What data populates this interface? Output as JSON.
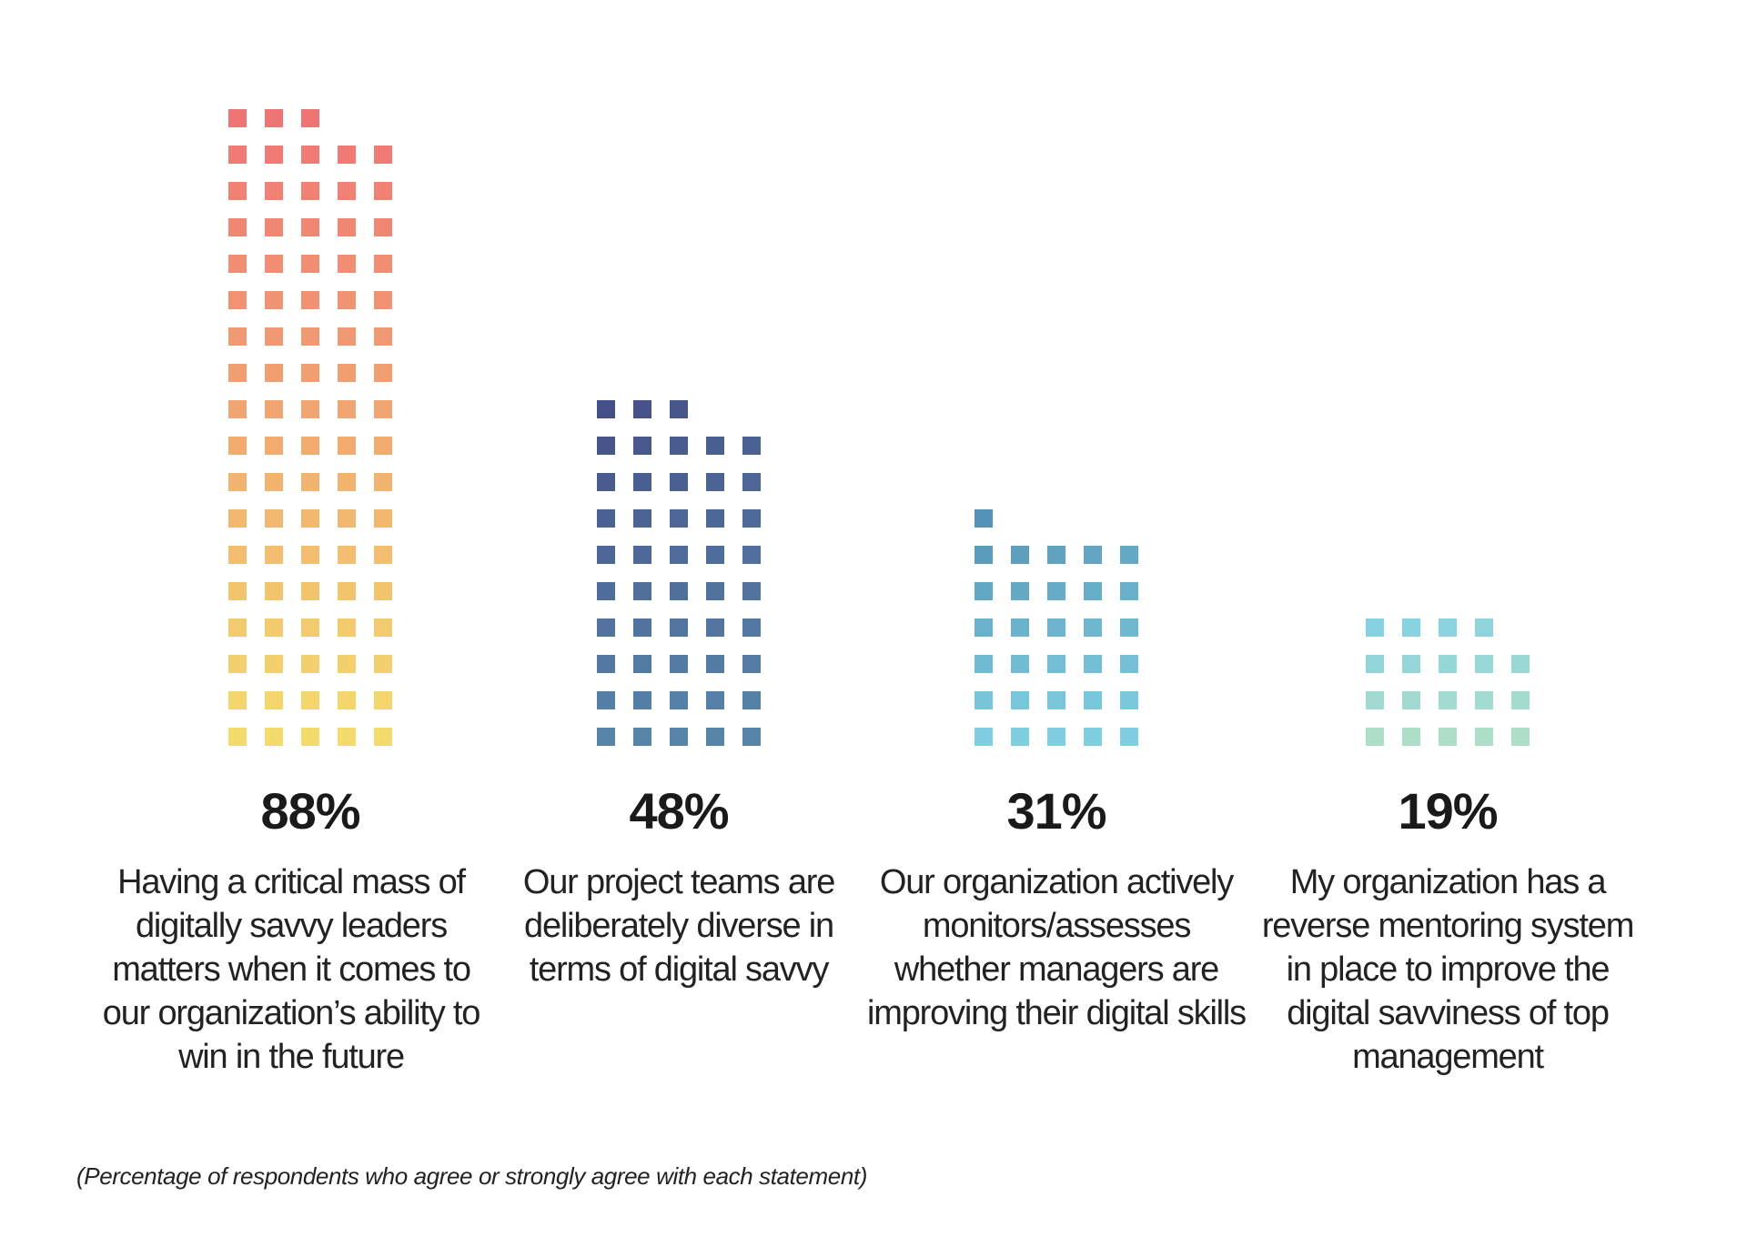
{
  "chart_data": {
    "type": "bar",
    "style": "waffle-column",
    "categories": [
      "Having a critical mass of digitally savvy leaders matters when it comes to our organization’s ability to win in the future",
      "Our project teams are deliberately diverse in terms of digital savvy",
      "Our organization actively monitors/assesses whether managers are improving their digital skills",
      "My organization has a reverse mentoring system in place to improve the digital savviness of top management"
    ],
    "values": [
      88,
      48,
      31,
      19
    ],
    "value_labels": [
      "88%",
      "48%",
      "31%",
      "19%"
    ],
    "unit": "%",
    "note": "(Percentage of respondents who agree or strongly agree with each statement)",
    "colors": {
      "col1": {
        "top": "#ef7575",
        "bottom": "#f4dc6c"
      },
      "col2": {
        "top": "#454f87",
        "bottom": "#5785aa"
      },
      "col3": {
        "top": "#5493b5",
        "bottom": "#7fcfe0"
      },
      "col4": {
        "top": "#86d2e2",
        "bottom": "#addec8"
      }
    }
  }
}
